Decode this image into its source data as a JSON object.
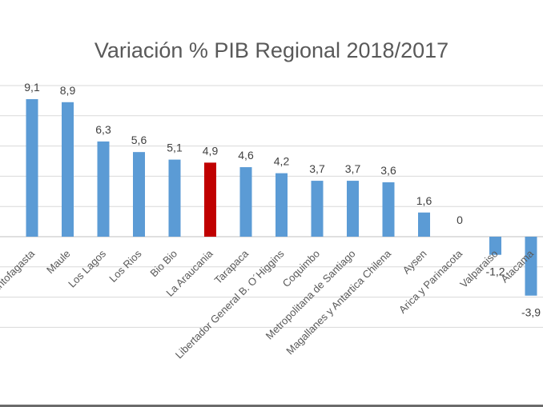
{
  "chart_data": {
    "type": "bar",
    "title": "Variación % PIB Regional 2018/2017",
    "xlabel": "",
    "ylabel": "",
    "ylim": [
      -6,
      12
    ],
    "grid": true,
    "legend": "none",
    "categories": [
      "Antofagasta",
      "Maule",
      "Los Lagos",
      "Los Rios",
      "Bio Bio",
      "La Araucania",
      "Tarapaca",
      "Libertador General B. O´Higgins",
      "Coquimbo",
      "Metropolitana de Santiago",
      "Magallanes y Antartica Chilena",
      "Aysen",
      "Arica y Parinacota",
      "Valparaiso",
      "Atacama"
    ],
    "values": [
      9.1,
      8.9,
      6.3,
      5.6,
      5.1,
      4.9,
      4.6,
      4.2,
      3.7,
      3.7,
      3.6,
      1.6,
      0,
      -1.2,
      -3.9
    ],
    "value_labels": [
      "9,1",
      "8,9",
      "6,3",
      "5,6",
      "5,1",
      "4,9",
      "4,6",
      "4,2",
      "3,7",
      "3,7",
      "3,6",
      "1,6",
      "0",
      "-1,2",
      "-3,9"
    ],
    "colors": {
      "default": "#5b9bd5",
      "highlight": "#c00000",
      "highlight_category": "La Araucania",
      "grid": "#d9d9d9",
      "text": "#595959"
    }
  }
}
